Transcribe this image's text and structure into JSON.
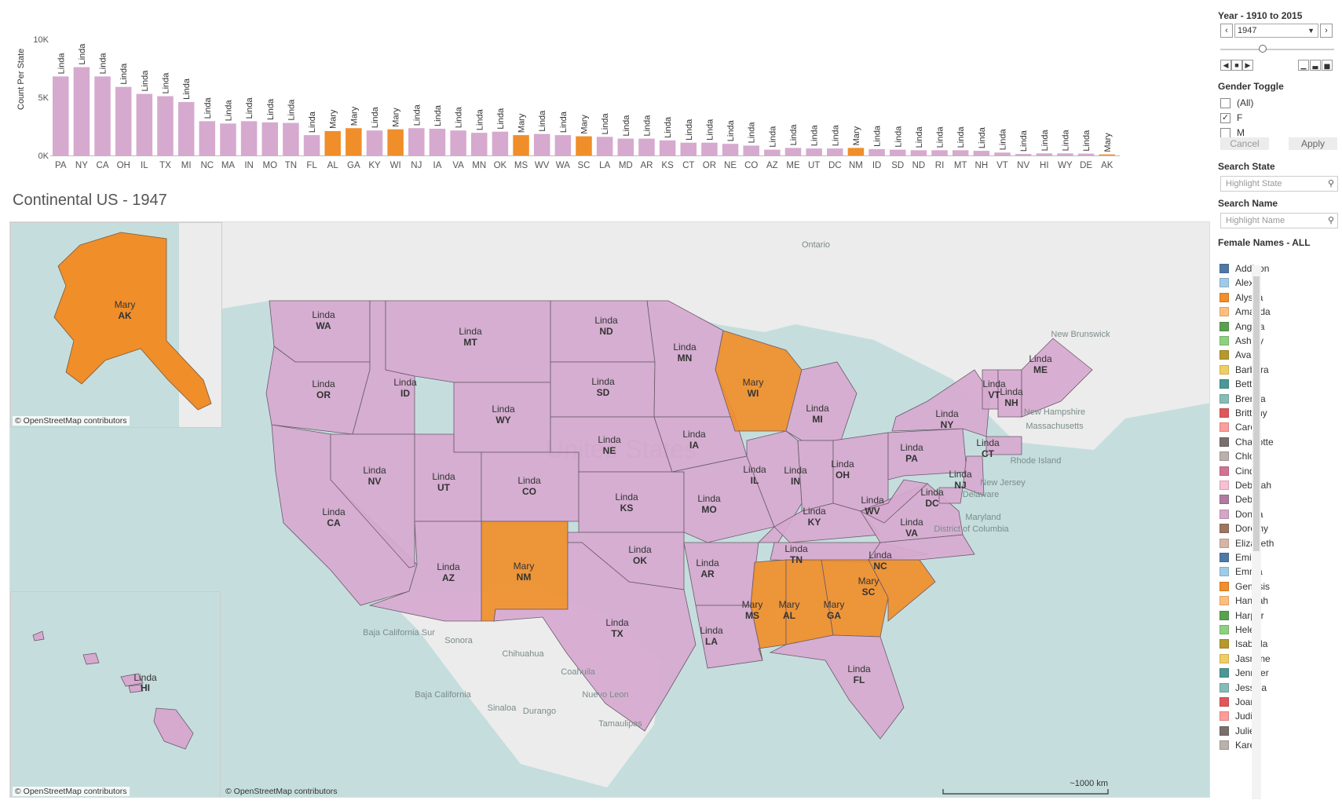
{
  "chart_data": {
    "type": "bar",
    "ylabel": "Count Per State",
    "yticks": [
      "10K",
      "5K",
      "0K"
    ],
    "ylim": [
      0,
      10000
    ],
    "colors": {
      "Linda": "#d6a9cf",
      "Mary": "#f08e2a"
    },
    "bars": [
      {
        "state": "PA",
        "name": "Linda",
        "value": 6800
      },
      {
        "state": "NY",
        "name": "Linda",
        "value": 7600
      },
      {
        "state": "CA",
        "name": "Linda",
        "value": 6800
      },
      {
        "state": "OH",
        "name": "Linda",
        "value": 5900
      },
      {
        "state": "IL",
        "name": "Linda",
        "value": 5300
      },
      {
        "state": "TX",
        "name": "Linda",
        "value": 5100
      },
      {
        "state": "MI",
        "name": "Linda",
        "value": 4600
      },
      {
        "state": "NC",
        "name": "Linda",
        "value": 2950
      },
      {
        "state": "MA",
        "name": "Linda",
        "value": 2750
      },
      {
        "state": "IN",
        "name": "Linda",
        "value": 2950
      },
      {
        "state": "MO",
        "name": "Linda",
        "value": 2850
      },
      {
        "state": "TN",
        "name": "Linda",
        "value": 2800
      },
      {
        "state": "FL",
        "name": "Linda",
        "value": 1750
      },
      {
        "state": "AL",
        "name": "Mary",
        "value": 2100
      },
      {
        "state": "GA",
        "name": "Mary",
        "value": 2350
      },
      {
        "state": "KY",
        "name": "Linda",
        "value": 2150
      },
      {
        "state": "WI",
        "name": "Mary",
        "value": 2250
      },
      {
        "state": "NJ",
        "name": "Linda",
        "value": 2350
      },
      {
        "state": "IA",
        "name": "Linda",
        "value": 2300
      },
      {
        "state": "VA",
        "name": "Linda",
        "value": 2150
      },
      {
        "state": "MN",
        "name": "Linda",
        "value": 1950
      },
      {
        "state": "OK",
        "name": "Linda",
        "value": 2050
      },
      {
        "state": "MS",
        "name": "Mary",
        "value": 1750
      },
      {
        "state": "WV",
        "name": "Linda",
        "value": 1850
      },
      {
        "state": "WA",
        "name": "Linda",
        "value": 1750
      },
      {
        "state": "SC",
        "name": "Mary",
        "value": 1650
      },
      {
        "state": "LA",
        "name": "Linda",
        "value": 1600
      },
      {
        "state": "MD",
        "name": "Linda",
        "value": 1450
      },
      {
        "state": "AR",
        "name": "Linda",
        "value": 1450
      },
      {
        "state": "KS",
        "name": "Linda",
        "value": 1300
      },
      {
        "state": "CT",
        "name": "Linda",
        "value": 1100
      },
      {
        "state": "OR",
        "name": "Linda",
        "value": 1100
      },
      {
        "state": "NE",
        "name": "Linda",
        "value": 1000
      },
      {
        "state": "CO",
        "name": "Linda",
        "value": 850
      },
      {
        "state": "AZ",
        "name": "Linda",
        "value": 500
      },
      {
        "state": "ME",
        "name": "Linda",
        "value": 650
      },
      {
        "state": "UT",
        "name": "Linda",
        "value": 600
      },
      {
        "state": "DC",
        "name": "Linda",
        "value": 600
      },
      {
        "state": "NM",
        "name": "Mary",
        "value": 650
      },
      {
        "state": "ID",
        "name": "Linda",
        "value": 550
      },
      {
        "state": "SD",
        "name": "Linda",
        "value": 500
      },
      {
        "state": "ND",
        "name": "Linda",
        "value": 450
      },
      {
        "state": "RI",
        "name": "Linda",
        "value": 450
      },
      {
        "state": "MT",
        "name": "Linda",
        "value": 450
      },
      {
        "state": "NH",
        "name": "Linda",
        "value": 400
      },
      {
        "state": "VT",
        "name": "Linda",
        "value": 250
      },
      {
        "state": "NV",
        "name": "Linda",
        "value": 130
      },
      {
        "state": "HI",
        "name": "Linda",
        "value": 180
      },
      {
        "state": "WY",
        "name": "Linda",
        "value": 180
      },
      {
        "state": "DE",
        "name": "Linda",
        "value": 160
      },
      {
        "state": "AK",
        "name": "Mary",
        "value": 90
      }
    ]
  },
  "map": {
    "title": "Continental US - 1947",
    "credit": "© OpenStreetMap contributors",
    "scale_label": "~1000 km",
    "basemap_labels": [
      "Ontario",
      "New Brunswick",
      "New Hampshire",
      "Massachusetts",
      "Rhode Island",
      "New Jersey",
      "Delaware",
      "Maryland",
      "District of Columbia",
      "Baja California Sur",
      "Sonora",
      "Chihuahua",
      "Coahuila",
      "Nuevo Leon",
      "Sinaloa",
      "Durango",
      "Tamaulipas",
      "Baja California"
    ],
    "watermark": "United States",
    "states": [
      {
        "abbr": "WA",
        "name": "Linda"
      },
      {
        "abbr": "OR",
        "name": "Linda"
      },
      {
        "abbr": "CA",
        "name": "Linda"
      },
      {
        "abbr": "ID",
        "name": "Linda"
      },
      {
        "abbr": "NV",
        "name": "Linda"
      },
      {
        "abbr": "MT",
        "name": "Linda"
      },
      {
        "abbr": "WY",
        "name": "Linda"
      },
      {
        "abbr": "UT",
        "name": "Linda"
      },
      {
        "abbr": "CO",
        "name": "Linda"
      },
      {
        "abbr": "AZ",
        "name": "Linda"
      },
      {
        "abbr": "NM",
        "name": "Mary"
      },
      {
        "abbr": "ND",
        "name": "Linda"
      },
      {
        "abbr": "SD",
        "name": "Linda"
      },
      {
        "abbr": "NE",
        "name": "Linda"
      },
      {
        "abbr": "KS",
        "name": "Linda"
      },
      {
        "abbr": "OK",
        "name": "Linda"
      },
      {
        "abbr": "TX",
        "name": "Linda"
      },
      {
        "abbr": "MN",
        "name": "Linda"
      },
      {
        "abbr": "IA",
        "name": "Linda"
      },
      {
        "abbr": "MO",
        "name": "Linda"
      },
      {
        "abbr": "AR",
        "name": "Linda"
      },
      {
        "abbr": "LA",
        "name": "Linda"
      },
      {
        "abbr": "WI",
        "name": "Mary"
      },
      {
        "abbr": "IL",
        "name": "Linda"
      },
      {
        "abbr": "MI",
        "name": "Linda"
      },
      {
        "abbr": "IN",
        "name": "Linda"
      },
      {
        "abbr": "OH",
        "name": "Linda"
      },
      {
        "abbr": "KY",
        "name": "Linda"
      },
      {
        "abbr": "TN",
        "name": "Linda"
      },
      {
        "abbr": "MS",
        "name": "Mary"
      },
      {
        "abbr": "AL",
        "name": "Mary"
      },
      {
        "abbr": "GA",
        "name": "Mary"
      },
      {
        "abbr": "FL",
        "name": "Linda"
      },
      {
        "abbr": "SC",
        "name": "Mary"
      },
      {
        "abbr": "NC",
        "name": "Linda"
      },
      {
        "abbr": "VA",
        "name": "Linda"
      },
      {
        "abbr": "WV",
        "name": "Linda"
      },
      {
        "abbr": "PA",
        "name": "Linda"
      },
      {
        "abbr": "NY",
        "name": "Linda"
      },
      {
        "abbr": "NJ",
        "name": "Linda"
      },
      {
        "abbr": "DC",
        "name": "Linda"
      },
      {
        "abbr": "CT",
        "name": "Linda"
      },
      {
        "abbr": "VT",
        "name": "Linda"
      },
      {
        "abbr": "NH",
        "name": "Linda"
      },
      {
        "abbr": "ME",
        "name": "Linda"
      },
      {
        "abbr": "AK",
        "name": "Mary"
      },
      {
        "abbr": "HI",
        "name": "Linda"
      }
    ]
  },
  "controls": {
    "year_title": "Year - 1910 to 2015",
    "year_value": "1947",
    "year_slider_fraction": 0.37,
    "prev_icon": "chevron-left-icon",
    "next_icon": "chevron-right-icon",
    "gender_title": "Gender Toggle",
    "gender_options": [
      {
        "label": "(All)",
        "checked": false
      },
      {
        "label": "F",
        "checked": true
      },
      {
        "label": "M",
        "checked": false
      }
    ],
    "cancel_label": "Cancel",
    "apply_label": "Apply",
    "search_state_title": "Search State",
    "search_state_placeholder": "Highlight State",
    "search_name_title": "Search Name",
    "search_name_placeholder": "Highlight Name",
    "legend_title": "Female Names - ALL",
    "legend": [
      {
        "name": "Addison",
        "color": "#4e79a7"
      },
      {
        "name": "Alexis",
        "color": "#a0cbe8"
      },
      {
        "name": "Alyssa",
        "color": "#f28e2b"
      },
      {
        "name": "Amanda",
        "color": "#ffbe7d"
      },
      {
        "name": "Angela",
        "color": "#59a14f"
      },
      {
        "name": "Ashley",
        "color": "#8cd17d"
      },
      {
        "name": "Ava",
        "color": "#b6992d"
      },
      {
        "name": "Barbara",
        "color": "#f1ce63"
      },
      {
        "name": "Betty",
        "color": "#499894"
      },
      {
        "name": "Brenda",
        "color": "#86bcb6"
      },
      {
        "name": "Brittany",
        "color": "#e15759"
      },
      {
        "name": "Carol",
        "color": "#ff9d9a"
      },
      {
        "name": "Charlotte",
        "color": "#79706e"
      },
      {
        "name": "Chloe",
        "color": "#bab0ac"
      },
      {
        "name": "Cindy",
        "color": "#d37295"
      },
      {
        "name": "Deborah",
        "color": "#fabfd2"
      },
      {
        "name": "Debra",
        "color": "#b07aa1"
      },
      {
        "name": "Donna",
        "color": "#d4a6c8"
      },
      {
        "name": "Dorothy",
        "color": "#9d7660"
      },
      {
        "name": "Elizabeth",
        "color": "#d7b5a6"
      },
      {
        "name": "Emily",
        "color": "#4e79a7"
      },
      {
        "name": "Emma",
        "color": "#a0cbe8"
      },
      {
        "name": "Genesis",
        "color": "#f28e2b"
      },
      {
        "name": "Hannah",
        "color": "#ffbe7d"
      },
      {
        "name": "Harper",
        "color": "#59a14f"
      },
      {
        "name": "Helen",
        "color": "#8cd17d"
      },
      {
        "name": "Isabella",
        "color": "#b6992d"
      },
      {
        "name": "Jasmine",
        "color": "#f1ce63"
      },
      {
        "name": "Jennifer",
        "color": "#499894"
      },
      {
        "name": "Jessica",
        "color": "#86bcb6"
      },
      {
        "name": "Joan",
        "color": "#e15759"
      },
      {
        "name": "Judith",
        "color": "#ff9d9a"
      },
      {
        "name": "Julie",
        "color": "#79706e"
      },
      {
        "name": "Karen",
        "color": "#bab0ac"
      }
    ]
  }
}
